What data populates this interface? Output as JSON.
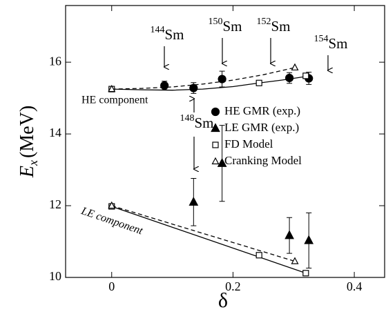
{
  "chart_data": {
    "type": "scatter",
    "xlabel": "δ",
    "ylabel": {
      "symbol": "E",
      "sub": "x",
      "unit": "(MeV)"
    },
    "xlim": [
      -0.076,
      0.45
    ],
    "ylim": [
      10,
      17.58
    ],
    "xticks": [
      0,
      0.2,
      0.4
    ],
    "yticks": [
      10,
      12,
      14,
      16
    ],
    "series": [
      {
        "name": "HE GMR (exp.)",
        "marker": "circle",
        "filled": true,
        "color": "#000000",
        "x": [
          0.087,
          0.135,
          0.182,
          0.293,
          0.325
        ],
        "values": [
          15.35,
          15.28,
          15.53,
          15.56,
          15.55
        ],
        "errors": [
          0.12,
          0.15,
          0.22,
          0.15,
          0.17
        ]
      },
      {
        "name": "LE GMR (exp.)",
        "marker": "triangle",
        "filled": true,
        "color": "#000000",
        "x": [
          0.135,
          0.182,
          0.293,
          0.325
        ],
        "values": [
          12.1,
          13.18,
          11.17,
          11.03
        ],
        "errors": [
          0.66,
          1.06,
          0.5,
          0.77
        ]
      },
      {
        "name": "FD Model",
        "marker": "square",
        "filled": false,
        "color": "#000000",
        "x": [
          0,
          0.243,
          0.32,
          0,
          0.243,
          0.32
        ],
        "values": [
          15.25,
          15.42,
          15.62,
          11.98,
          10.62,
          10.12
        ]
      },
      {
        "name": "Cranking Model",
        "marker": "triangle",
        "filled": false,
        "color": "#000000",
        "x": [
          0,
          0.302,
          0,
          0.302
        ],
        "values": [
          15.25,
          15.85,
          12.0,
          10.45
        ]
      }
    ],
    "curves": [
      {
        "style": "solid",
        "x": [
          0,
          0.05,
          0.1,
          0.15,
          0.2,
          0.243,
          0.28,
          0.32
        ],
        "values": [
          15.25,
          15.23,
          15.22,
          15.25,
          15.32,
          15.42,
          15.5,
          15.6
        ]
      },
      {
        "style": "dashed",
        "x": [
          0,
          0.05,
          0.1,
          0.15,
          0.2,
          0.25,
          0.302
        ],
        "values": [
          15.25,
          15.27,
          15.31,
          15.39,
          15.5,
          15.65,
          15.85
        ]
      },
      {
        "style": "solid",
        "x": [
          0,
          0.32
        ],
        "values": [
          11.98,
          10.12
        ]
      },
      {
        "style": "dashed",
        "x": [
          0,
          0.302
        ],
        "values": [
          12.0,
          10.45
        ]
      }
    ],
    "annotations": [
      {
        "sup": "144",
        "text": "Sm"
      },
      {
        "sup": "150",
        "text": "Sm"
      },
      {
        "sup": "152",
        "text": "Sm"
      },
      {
        "sup": "154",
        "text": "Sm"
      },
      {
        "sup": "148",
        "text": "Sm"
      },
      {
        "text": "HE component"
      },
      {
        "text": "LE component"
      }
    ]
  }
}
